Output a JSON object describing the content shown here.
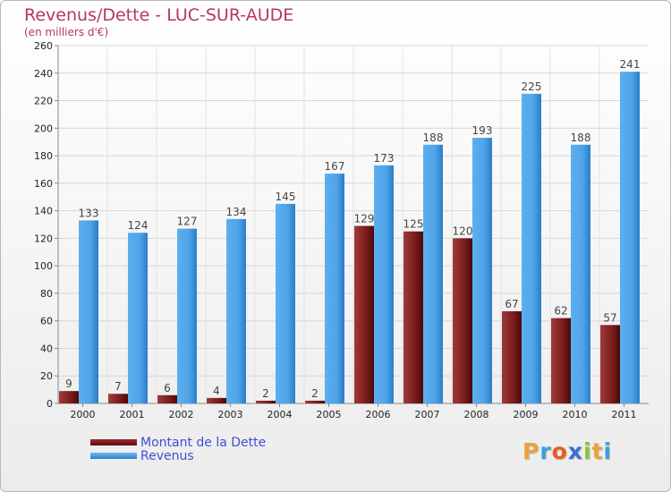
{
  "title": "Revenus/Dette - LUC-SUR-AUDE",
  "subtitle": "(en milliers d'€)",
  "logo": {
    "text": "Proxiti",
    "colors": [
      "#e8a33a",
      "#3aa0d8",
      "#e85c20",
      "#3a6fd8",
      "#8ac43a",
      "#e8a33a",
      "#3aa0d8"
    ]
  },
  "colors": {
    "dette": "#7a1c1c",
    "revenus": "#4fa3e8"
  },
  "chart_data": {
    "type": "bar",
    "title": "Revenus/Dette - LUC-SUR-AUDE",
    "ylabel": "(en milliers d'€)",
    "xlabel": "",
    "categories": [
      "2000",
      "2001",
      "2002",
      "2003",
      "2004",
      "2005",
      "2006",
      "2007",
      "2008",
      "2009",
      "2010",
      "2011"
    ],
    "series": [
      {
        "name": "Montant de la Dette",
        "values": [
          9,
          7,
          6,
          4,
          2,
          2,
          129,
          125,
          120,
          67,
          62,
          57
        ]
      },
      {
        "name": "Revenus",
        "values": [
          133,
          124,
          127,
          134,
          145,
          167,
          173,
          188,
          193,
          225,
          188,
          241
        ]
      }
    ],
    "ylim": [
      0,
      260
    ],
    "yticks": [
      0,
      20,
      40,
      60,
      80,
      100,
      120,
      140,
      160,
      180,
      200,
      220,
      240,
      260
    ],
    "grid": true,
    "legend": "bottom-left"
  }
}
